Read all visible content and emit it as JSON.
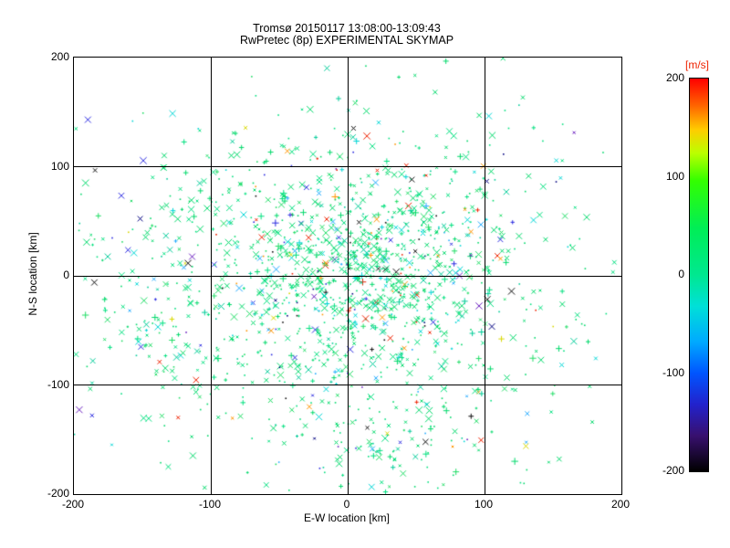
{
  "chart_data": {
    "type": "scatter",
    "title": "Tromsø 20150117 13:08:00-13:09:43",
    "subtitle": "RwPretec (8p) EXPERIMENTAL SKYMAP",
    "xlabel": "E-W location [km]",
    "ylabel": "N-S location [km]",
    "xlim": [
      -200,
      200
    ],
    "ylim": [
      -200,
      200
    ],
    "xticks": [
      -200,
      -100,
      0,
      100,
      200
    ],
    "yticks": [
      200,
      100,
      0,
      -100,
      -200
    ],
    "grid_values": [
      -100,
      0,
      100
    ],
    "grid": true,
    "axis_color": "#000000",
    "background": "#ffffff",
    "colorbar": {
      "label": "[m/s]",
      "label_color": "#ee2200",
      "max": 200,
      "min": -200,
      "ticks": [
        200,
        100,
        0,
        -100,
        -200
      ],
      "gradient_stops": [
        {
          "pos": 0,
          "color": "#ff0000"
        },
        {
          "pos": 7,
          "color": "#ff6600"
        },
        {
          "pos": 13,
          "color": "#ffcc00"
        },
        {
          "pos": 19,
          "color": "#bbff00"
        },
        {
          "pos": 26,
          "color": "#33ff00"
        },
        {
          "pos": 38,
          "color": "#00ee55"
        },
        {
          "pos": 50,
          "color": "#00e890"
        },
        {
          "pos": 58,
          "color": "#00e0d8"
        },
        {
          "pos": 67,
          "color": "#00aaff"
        },
        {
          "pos": 75,
          "color": "#0055ff"
        },
        {
          "pos": 83,
          "color": "#2222cc"
        },
        {
          "pos": 91,
          "color": "#38106e"
        },
        {
          "pos": 100,
          "color": "#000000"
        }
      ]
    },
    "marker_palette": [
      {
        "color": "#00d96b",
        "w": 34
      },
      {
        "color": "#00e07f",
        "w": 18
      },
      {
        "color": "#21dd66",
        "w": 10
      },
      {
        "color": "#00cc99",
        "w": 6
      },
      {
        "color": "#00d6d6",
        "w": 6
      },
      {
        "color": "#22aaff",
        "w": 2
      },
      {
        "color": "#2a2ae0",
        "w": 1.6
      },
      {
        "color": "#000080",
        "w": 1
      },
      {
        "color": "#ee2200",
        "w": 2
      },
      {
        "color": "#ff9500",
        "w": 1.2
      },
      {
        "color": "#d8d800",
        "w": 1
      },
      {
        "color": "#101010",
        "w": 1.6
      },
      {
        "color": "#6a1fbf",
        "w": 0.8
      }
    ],
    "marker_types": [
      {
        "type": "x",
        "w": 50
      },
      {
        "type": "plus",
        "w": 15
      },
      {
        "type": "dot",
        "w": 35
      }
    ],
    "clusters": [
      {
        "x": 15,
        "y": 15,
        "sx": 45,
        "sy": 40,
        "n": 500
      },
      {
        "x": 5,
        "y": -35,
        "sx": 55,
        "sy": 40,
        "n": 300
      },
      {
        "x": -30,
        "y": 50,
        "sx": 75,
        "sy": 45,
        "n": 170
      },
      {
        "x": 30,
        "y": -150,
        "sx": 40,
        "sy": 30,
        "n": 130
      },
      {
        "x": -115,
        "y": -65,
        "sx": 50,
        "sy": 45,
        "n": 150
      },
      {
        "x": -120,
        "y": 30,
        "sx": 55,
        "sy": 50,
        "n": 80
      },
      {
        "x": 0,
        "y": -20,
        "sx": 145,
        "sy": 115,
        "n": 300
      },
      {
        "x": 110,
        "y": -30,
        "sx": 55,
        "sy": 60,
        "n": 70
      },
      {
        "x": 60,
        "y": 100,
        "sx": 60,
        "sy": 40,
        "n": 80
      }
    ],
    "seed": 20150117
  }
}
